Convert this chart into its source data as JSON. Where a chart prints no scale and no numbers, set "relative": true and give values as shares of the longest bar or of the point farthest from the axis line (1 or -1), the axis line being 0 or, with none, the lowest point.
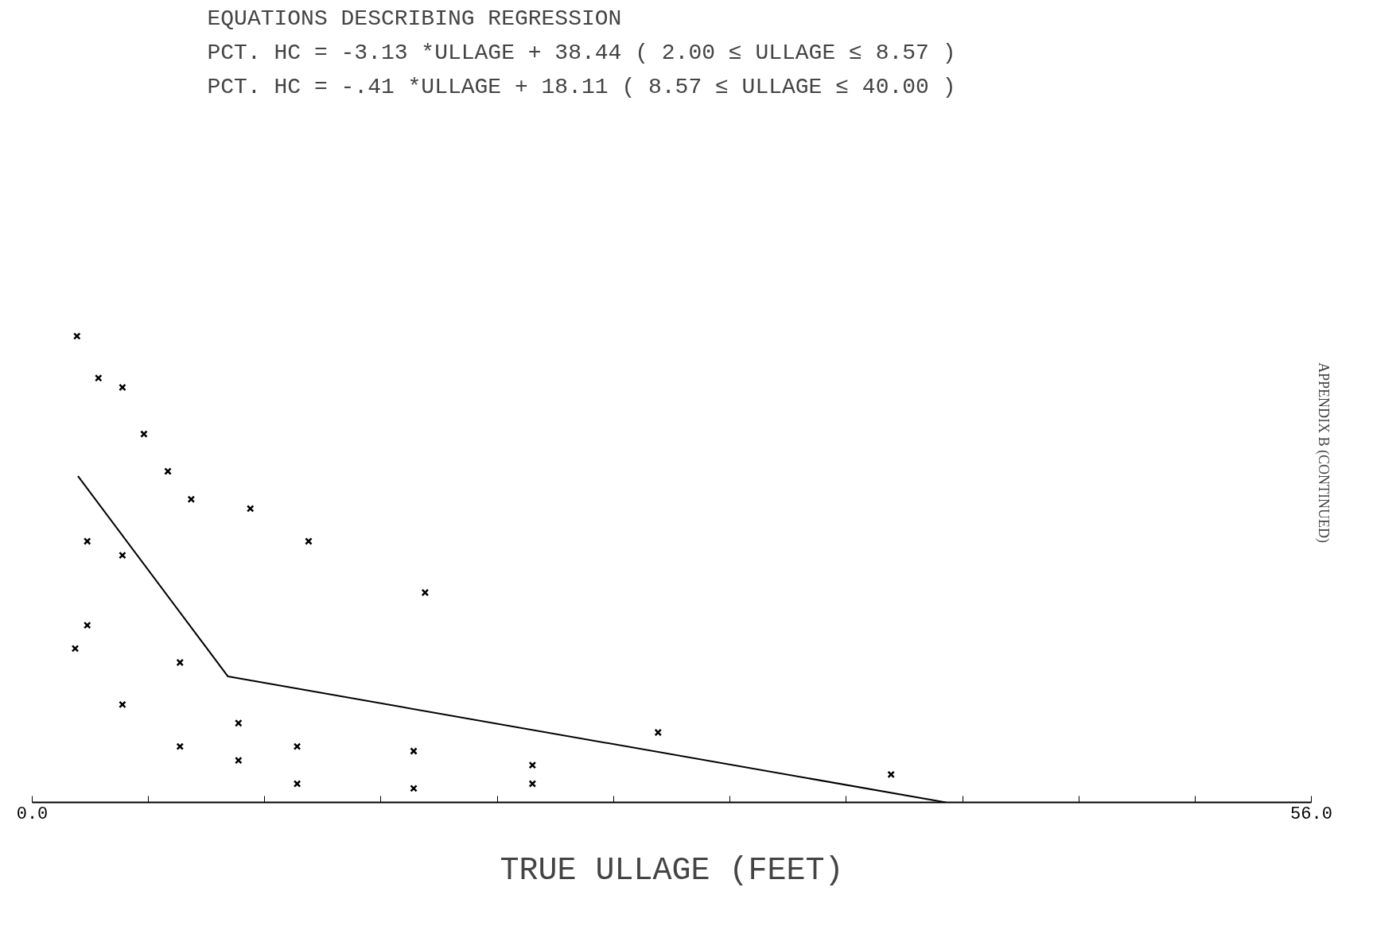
{
  "chart_data": {
    "type": "scatter",
    "title": "EQUATIONS DESCRIBING REGRESSION",
    "xlabel": "TRUE ULLAGE (FEET)",
    "annotations": [
      "PCT. HC = -3.13   *ULLAGE + 38.44   ( 2.00   ≤ ULLAGE ≤ 8.57 )",
      "PCT. HC = -.41    *ULLAGE + 18.11   ( 8.57   ≤ ULLAGE ≤ 40.00 )",
      "APPENDIX B (CONTINUED)"
    ],
    "relative": true,
    "grid": false,
    "tick_labels": "x",
    "xlim": [
      0,
      56
    ],
    "xticks": [
      {
        "value": 0,
        "label": "0.0"
      },
      {
        "value": 5.09,
        "label": null
      },
      {
        "value": 10.18,
        "label": null
      },
      {
        "value": 15.27,
        "label": null
      },
      {
        "value": 20.36,
        "label": null
      },
      {
        "value": 25.45,
        "label": null
      },
      {
        "value": 30.55,
        "label": null
      },
      {
        "value": 35.64,
        "label": null
      },
      {
        "value": 40.73,
        "label": null
      },
      {
        "value": 45.82,
        "label": null
      },
      {
        "value": 50.91,
        "label": null
      },
      {
        "value": 56,
        "label": "56.0"
      }
    ],
    "series": [
      {
        "marker": "cross",
        "color": "#000000",
        "x": [
          1.96,
          2.9,
          3.95,
          4.89,
          5.94,
          6.96,
          9.55,
          12.1,
          17.2,
          2.41,
          3.95,
          2.41,
          1.88,
          6.47,
          3.95,
          6.47,
          9.03,
          9.03,
          11.6,
          11.6,
          16.7,
          16.7,
          21.9,
          21.9,
          27.4,
          37.6
        ],
        "values": [
          1.0,
          0.91,
          0.89,
          0.79,
          0.71,
          0.65,
          0.63,
          0.56,
          0.45,
          0.56,
          0.53,
          0.38,
          0.33,
          0.3,
          0.21,
          0.12,
          0.17,
          0.09,
          0.12,
          0.04,
          0.11,
          0.03,
          0.08,
          0.04,
          0.15,
          0.06
        ]
      },
      {
        "type": "line",
        "color": "#000000",
        "x": [
          2.0,
          8.57,
          40.0
        ],
        "values": [
          0.7,
          0.27,
          0.0
        ]
      }
    ]
  }
}
